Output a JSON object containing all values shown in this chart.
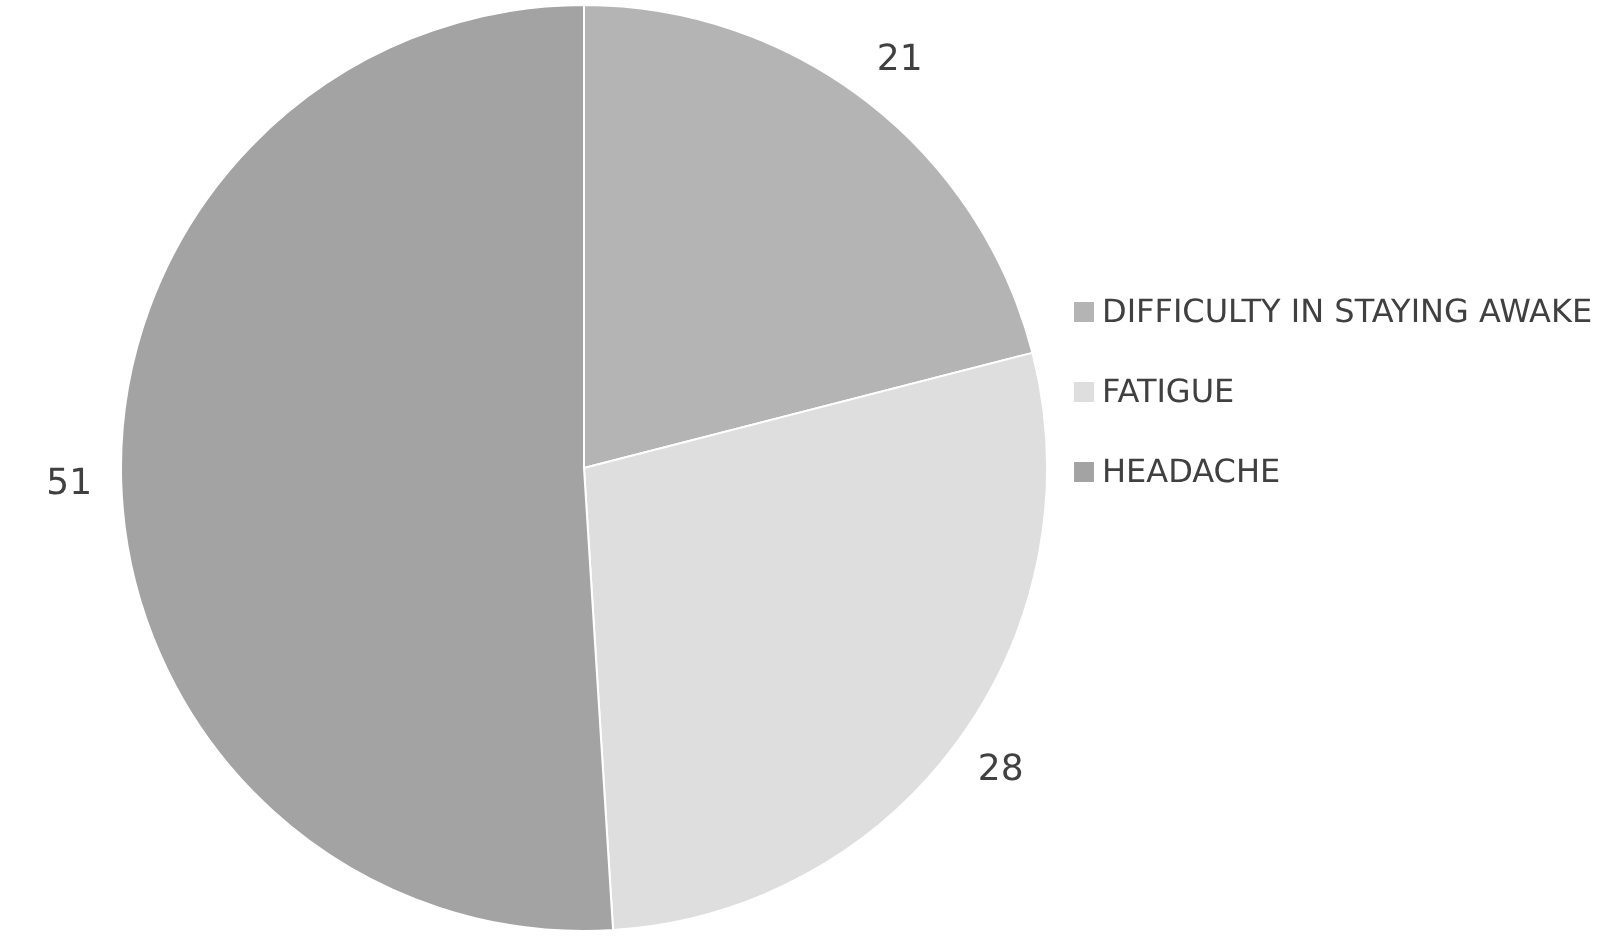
{
  "chart_data": {
    "type": "pie",
    "categories": [
      "DIFFICULTY IN STAYING AWAKE",
      "FATIGUE",
      "HEADACHE"
    ],
    "values": [
      21,
      28,
      51
    ],
    "colors": [
      "#b4b4b4",
      "#dedede",
      "#a3a3a3"
    ],
    "data_labels": true,
    "legend": "right"
  }
}
